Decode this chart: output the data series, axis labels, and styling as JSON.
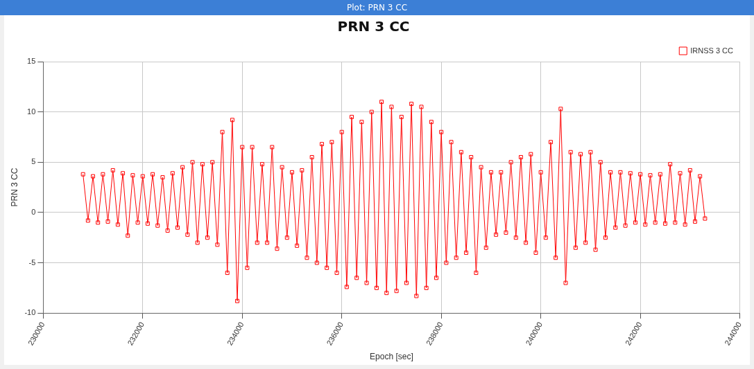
{
  "chart_data": {
    "type": "line",
    "title": "PRN 3 CC",
    "xlabel": "Epoch [sec]",
    "ylabel": "PRN 3 CC",
    "annotations": [
      "Plot: PRN 3 CC"
    ],
    "xlim": [
      230000,
      244000
    ],
    "xticks": [
      230000,
      232000,
      234000,
      236000,
      238000,
      240000,
      242000,
      244000
    ],
    "ylim": [
      -10,
      15
    ],
    "yticks": [
      -10,
      -5,
      0,
      5,
      10,
      15
    ],
    "grid": true,
    "legend": "top right",
    "marker": "square",
    "line_style": "solid",
    "series": [
      {
        "name": "IRNSS 3 CC",
        "color": "#ff0000",
        "x": [
          230800,
          230900,
          231000,
          231100,
          231200,
          231300,
          231400,
          231500,
          231600,
          231700,
          231800,
          231900,
          232000,
          232100,
          232200,
          232300,
          232400,
          232500,
          232600,
          232700,
          232800,
          232900,
          233000,
          233100,
          233200,
          233300,
          233400,
          233500,
          233600,
          233700,
          233800,
          233900,
          234000,
          234100,
          234200,
          234300,
          234400,
          234500,
          234600,
          234700,
          234800,
          234900,
          235000,
          235100,
          235200,
          235300,
          235400,
          235500,
          235600,
          235700,
          235800,
          235900,
          236000,
          236100,
          236200,
          236300,
          236400,
          236500,
          236600,
          236700,
          236800,
          236900,
          237000,
          237100,
          237200,
          237300,
          237400,
          237500,
          237600,
          237700,
          237800,
          237900,
          238000,
          238100,
          238200,
          238300,
          238400,
          238500,
          238600,
          238700,
          238800,
          238900,
          239000,
          239100,
          239200,
          239300,
          239400,
          239500,
          239600,
          239700,
          239800,
          239900,
          240000,
          240100,
          240200,
          240300,
          240400,
          240500,
          240600,
          240700,
          240800,
          240900,
          241000,
          241100,
          241200,
          241300,
          241400,
          241500,
          241600,
          241700,
          241800,
          241900,
          242000,
          242100,
          242200,
          242300,
          242400,
          242500,
          242600,
          242700,
          242800,
          242900,
          243000,
          243100,
          243200,
          243300
        ],
        "values": [
          3.8,
          -0.8,
          3.6,
          -1.0,
          3.8,
          -0.9,
          4.2,
          -1.2,
          3.9,
          -2.3,
          3.7,
          -1.0,
          3.6,
          -1.1,
          3.8,
          -1.3,
          3.5,
          -1.8,
          3.9,
          -1.5,
          4.5,
          -2.2,
          5.0,
          -3.0,
          4.8,
          -2.5,
          5.0,
          -3.2,
          8.0,
          -6.0,
          9.2,
          -8.8,
          6.5,
          -5.5,
          6.5,
          -3.0,
          4.8,
          -3.0,
          6.5,
          -3.6,
          4.5,
          -2.5,
          4.0,
          -3.3,
          4.2,
          -4.5,
          5.5,
          -5.0,
          6.8,
          -5.5,
          7.0,
          -6.0,
          8.0,
          -7.4,
          9.5,
          -6.5,
          9.0,
          -7.0,
          10.0,
          -7.5,
          11.0,
          -8.0,
          10.5,
          -7.8,
          9.5,
          -7.0,
          10.8,
          -8.3,
          10.5,
          -7.5,
          9.0,
          -6.5,
          8.0,
          -5.0,
          7.0,
          -4.5,
          6.0,
          -4.0,
          5.5,
          -6.0,
          4.5,
          -3.5,
          4.0,
          -2.2,
          4.0,
          -2.0,
          5.0,
          -2.5,
          5.5,
          -3.0,
          5.8,
          -4.0,
          4.0,
          -2.5,
          7.0,
          -4.5,
          10.3,
          -7.0,
          6.0,
          -3.5,
          5.8,
          -3.0,
          6.0,
          -3.7,
          5.0,
          -2.5,
          4.0,
          -1.5,
          4.0,
          -1.3,
          3.9,
          -1.0,
          3.8,
          -1.2,
          3.7,
          -1.0,
          3.8,
          -1.1,
          4.8,
          -1.0,
          3.9,
          -1.2,
          4.2,
          -0.9,
          3.6,
          -0.6
        ]
      }
    ]
  }
}
